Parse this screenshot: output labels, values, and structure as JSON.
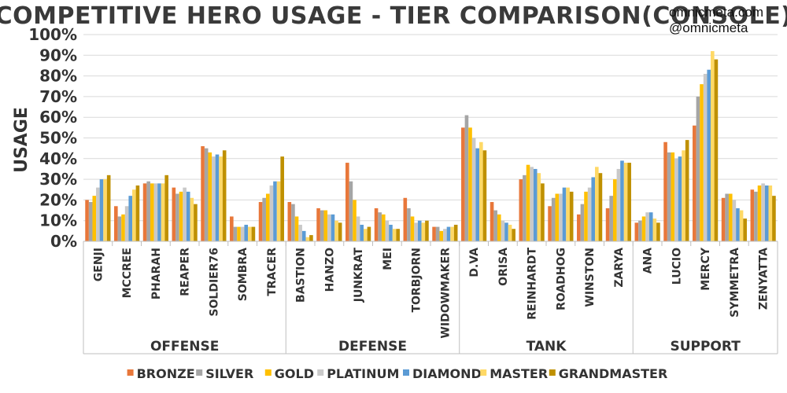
{
  "header": {
    "title": "COMPETITIVE HERO USAGE - TIER COMPARISON(CONSOLE)",
    "site": "omnicmeta.com",
    "handle": "@omnicmeta"
  },
  "chart_data": {
    "type": "bar",
    "title": "COMPETITIVE HERO USAGE - TIER COMPARISON(CONSOLE)",
    "ylabel": "USAGE",
    "xlabel": "",
    "ylim": [
      0,
      100
    ],
    "yticks": [
      "0%",
      "10%",
      "20%",
      "30%",
      "40%",
      "50%",
      "60%",
      "70%",
      "80%",
      "90%",
      "100%"
    ],
    "grid": true,
    "legend_position": "bottom",
    "categories": [
      "GENJI",
      "MCCREE",
      "PHARAH",
      "REAPER",
      "SOLDIER76",
      "SOMBRA",
      "TRACER",
      "BASTION",
      "HANZO",
      "JUNKRAT",
      "MEI",
      "TORBJORN",
      "WIDOWMAKER",
      "D.VA",
      "ORISA",
      "REINHARDT",
      "ROADHOG",
      "WINSTON",
      "ZARYA",
      "ANA",
      "LUCIO",
      "MERCY",
      "SYMMETRA",
      "ZENYATTA"
    ],
    "groups": [
      {
        "name": "OFFENSE",
        "count": 7
      },
      {
        "name": "DEFENSE",
        "count": 6
      },
      {
        "name": "TANK",
        "count": 6
      },
      {
        "name": "SUPPORT",
        "count": 5
      }
    ],
    "series": [
      {
        "name": "BRONZE",
        "color": "#E8773A",
        "values": [
          20,
          17,
          28,
          26,
          46,
          12,
          19,
          19,
          16,
          38,
          16,
          21,
          7,
          55,
          19,
          30,
          17,
          13,
          16,
          9,
          48,
          56,
          21,
          25
        ]
      },
      {
        "name": "SILVER",
        "color": "#A5A5A5",
        "values": [
          19,
          12,
          29,
          23,
          45,
          7,
          21,
          18,
          15,
          29,
          14,
          16,
          7,
          61,
          15,
          32,
          21,
          18,
          22,
          10,
          43,
          70,
          23,
          24
        ]
      },
      {
        "name": "GOLD",
        "color": "#FFC000",
        "values": [
          22,
          13,
          28,
          24,
          43,
          7,
          23,
          12,
          15,
          20,
          13,
          12,
          5,
          55,
          13,
          37,
          23,
          24,
          30,
          12,
          43,
          76,
          23,
          27
        ]
      },
      {
        "name": "PLATINUM",
        "color": "#C9C9C9",
        "values": [
          26,
          17,
          28,
          26,
          41,
          7,
          27,
          8,
          13,
          12,
          10,
          9,
          6,
          50,
          10,
          36,
          23,
          26,
          35,
          14,
          40,
          81,
          20,
          28
        ]
      },
      {
        "name": "DIAMOND",
        "color": "#5B9BD5",
        "values": [
          30,
          22,
          28,
          24,
          42,
          8,
          29,
          5,
          13,
          8,
          8,
          10,
          7,
          45,
          9,
          35,
          26,
          31,
          39,
          14,
          41,
          83,
          16,
          27
        ]
      },
      {
        "name": "MASTER",
        "color": "#FFD966",
        "values": [
          30,
          25,
          28,
          21,
          41,
          7,
          29,
          2,
          10,
          6,
          6,
          9,
          7,
          48,
          8,
          33,
          26,
          36,
          38,
          11,
          44,
          92,
          15,
          27
        ]
      },
      {
        "name": "GRANDMASTER",
        "color": "#BF9000",
        "values": [
          32,
          27,
          32,
          18,
          44,
          7,
          41,
          3,
          9,
          7,
          6,
          10,
          8,
          44,
          6,
          28,
          24,
          33,
          38,
          9,
          49,
          88,
          11,
          22
        ]
      }
    ]
  }
}
